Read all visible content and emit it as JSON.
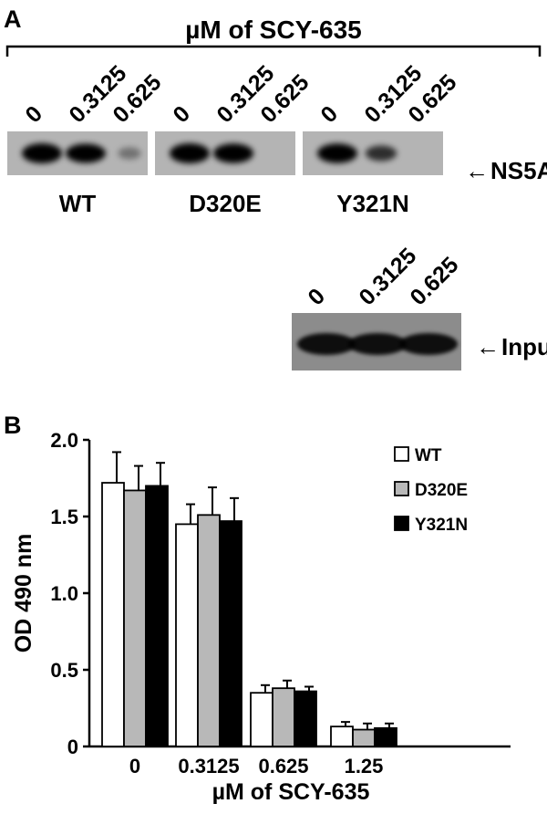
{
  "panel_a": {
    "label": "A",
    "header": "µM of SCY-635",
    "lane_labels": [
      "0",
      "0.3125",
      "0.625"
    ],
    "blots": [
      {
        "name": "WT",
        "bands": [
          1.0,
          0.9,
          0.12
        ]
      },
      {
        "name": "D320E",
        "bands": [
          1.0,
          0.95,
          0.0
        ]
      },
      {
        "name": "Y321N",
        "bands": [
          0.95,
          0.5,
          0.0
        ]
      }
    ],
    "blot_marker": "NS5A",
    "input_lane_labels": [
      "0",
      "0.3125",
      "0.625"
    ],
    "input_bands": [
      0.9,
      0.9,
      0.9
    ],
    "input_marker": "Input",
    "arrow_glyph": "←"
  },
  "panel_b": {
    "label": "B"
  },
  "chart_data": {
    "type": "bar",
    "categories": [
      "0",
      "0.3125",
      "0.625",
      "1.25"
    ],
    "xlabel": "µM of SCY-635",
    "ylabel": "OD 490 nm",
    "ylim": [
      0,
      2.0
    ],
    "yticks": [
      "0",
      "0.5",
      "1.0",
      "1.5",
      "2.0"
    ],
    "grid": false,
    "legend_position": "top-right",
    "series": [
      {
        "name": "WT",
        "color": "#ffffff",
        "values": [
          1.72,
          1.45,
          0.35,
          0.13
        ],
        "errors": [
          0.2,
          0.13,
          0.05,
          0.03
        ]
      },
      {
        "name": "D320E",
        "color": "#b8b8b8",
        "values": [
          1.67,
          1.51,
          0.38,
          0.11
        ],
        "errors": [
          0.16,
          0.18,
          0.05,
          0.04
        ]
      },
      {
        "name": "Y321N",
        "color": "#000000",
        "values": [
          1.7,
          1.47,
          0.36,
          0.12
        ],
        "errors": [
          0.15,
          0.15,
          0.03,
          0.03
        ]
      }
    ]
  }
}
